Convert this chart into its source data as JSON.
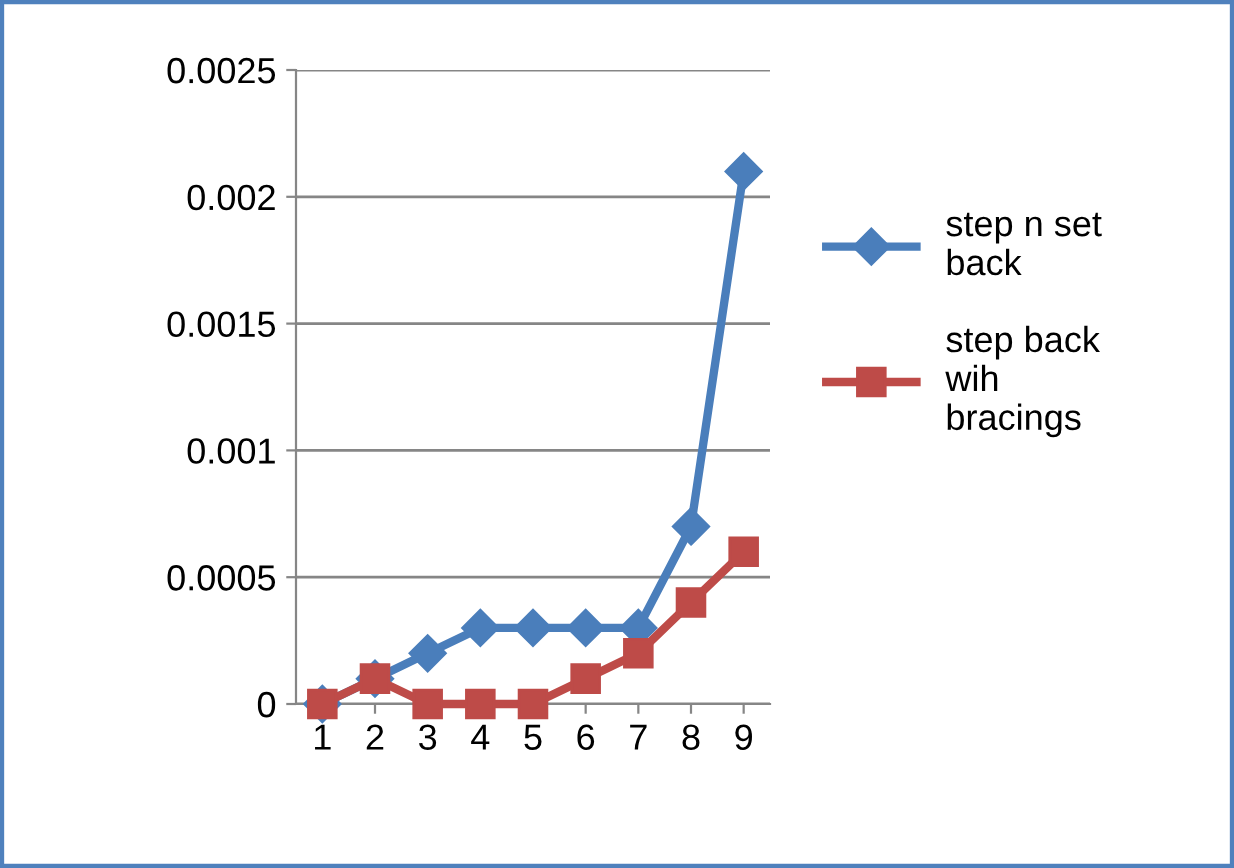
{
  "chart_data": {
    "type": "line",
    "categories": [
      "1",
      "2",
      "3",
      "4",
      "5",
      "6",
      "7",
      "8",
      "9"
    ],
    "series": [
      {
        "name": "step n set back",
        "color": "#4a7ebb",
        "marker": "diamond",
        "values": [
          0,
          0.0001,
          0.0002,
          0.0003,
          0.0003,
          0.0003,
          0.0003,
          0.0007,
          0.0021
        ]
      },
      {
        "name": "step back wih bracings",
        "color": "#be4b48",
        "marker": "square",
        "values": [
          0,
          0.0001,
          0,
          0,
          0,
          0.0001,
          0.0002,
          0.0004,
          0.0006
        ]
      }
    ],
    "ylim": [
      0,
      0.0025
    ],
    "yticks": [
      0,
      0.0005,
      0.001,
      0.0015,
      0.002,
      0.0025
    ],
    "grid": "y",
    "legend": "right",
    "line_style": "solid"
  }
}
